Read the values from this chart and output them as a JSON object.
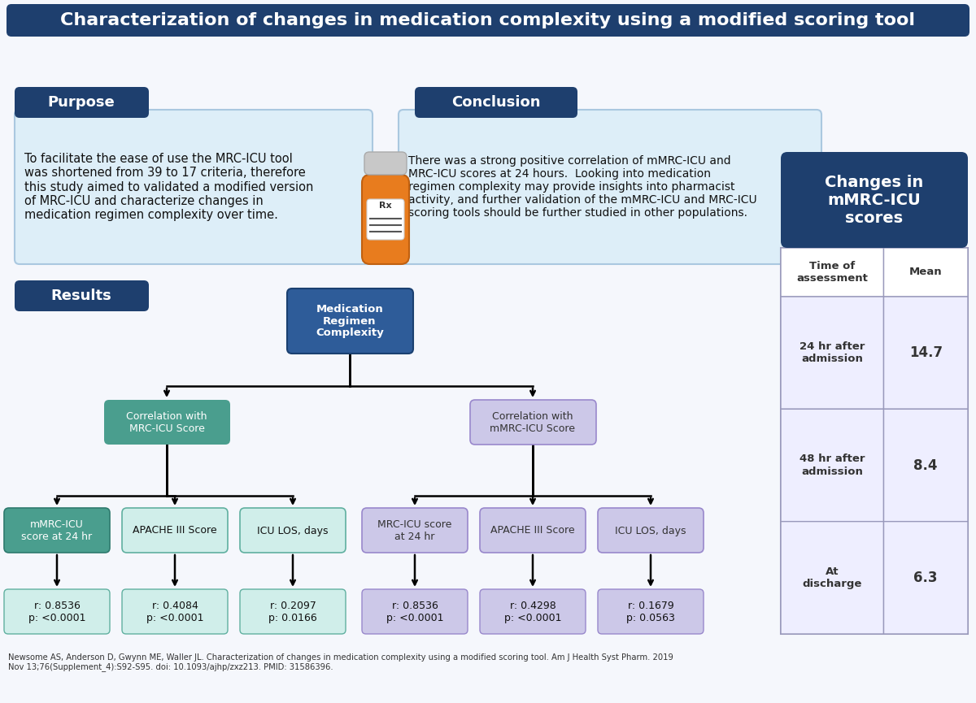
{
  "title": "Characterization of changes in medication complexity using a modified scoring tool",
  "bg_color": "#f5f7fc",
  "dark_blue": "#1e3f6e",
  "medium_blue": "#2e5c99",
  "teal_green": "#4a9e8e",
  "light_teal": "#b2ddd5",
  "light_teal_box": "#d0eeea",
  "purple": "#8880c0",
  "light_purple": "#ccc8e8",
  "light_blue_box": "#ddeef8",
  "purpose_label": "Purpose",
  "purpose_text": "To facilitate the ease of use the MRC-ICU tool\nwas shortened from 39 to 17 criteria, therefore\nthis study aimed to validated a modified version\nof MRC-ICU and characterize changes in\nmedication regimen complexity over time.",
  "conclusion_label": "Conclusion",
  "conclusion_text": "There was a strong positive correlation of mMRC-ICU and\nMRC-ICU scores at 24 hours.  Looking into medication\nregimen complexity may provide insights into pharmacist\nactivity, and further validation of the mMRC-ICU and MRC-ICU\nscoring tools should be further studied in other populations.",
  "results_label": "Results",
  "med_box_label": "Medication\nRegimen\nComplexity",
  "left_branch_label": "Correlation with\nMRC-ICU Score",
  "right_branch_label": "Correlation with\nmMRC-ICU Score",
  "left_leaves": [
    "mMRC-ICU\nscore at 24 hr",
    "APACHE III Score",
    "ICU LOS, days"
  ],
  "right_leaves": [
    "MRC-ICU score\nat 24 hr",
    "APACHE III Score",
    "ICU LOS, days"
  ],
  "left_stats": [
    "r: 0.8536\np: <0.0001",
    "r: 0.4084\np: <0.0001",
    "r: 0.2097\np: 0.0166"
  ],
  "right_stats": [
    "r: 0.8536\np: <0.0001",
    "r: 0.4298\np: <0.0001",
    "r: 0.1679\np: 0.0563"
  ],
  "table_title": "Changes in\nmMRC-ICU\nscores",
  "table_col1": "Time of\nassessment",
  "table_col2": "Mean",
  "table_rows": [
    [
      "24 hr after\nadmission",
      "14.7"
    ],
    [
      "48 hr after\nadmission",
      "8.4"
    ],
    [
      "At\ndischarge",
      "6.3"
    ]
  ],
  "citation": "Newsome AS, Anderson D, Gwynn ME, Waller JL. Characterization of changes in medication complexity using a modified scoring tool. Am J Health Syst Pharm. 2019\nNov 13;76(Supplement_4):S92-S95. doi: 10.1093/ajhp/zxz213. PMID: 31586396."
}
